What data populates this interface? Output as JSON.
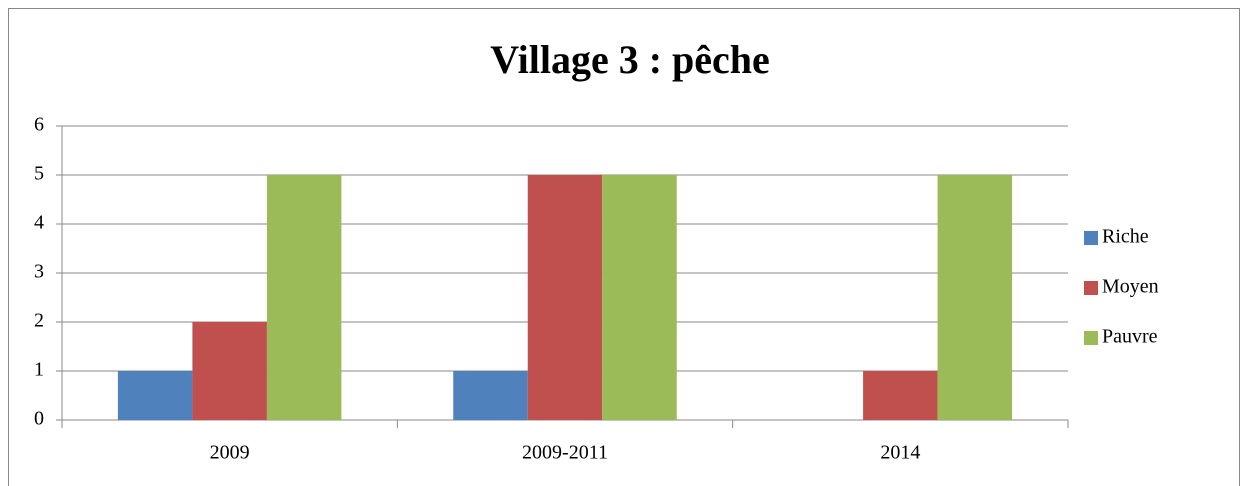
{
  "chart_data": {
    "type": "bar",
    "title": "Village 3 : pêche",
    "categories": [
      "2009",
      "2009-2011",
      "2014"
    ],
    "series": [
      {
        "name": "Riche",
        "color": "#4f81bd",
        "values": [
          1,
          1,
          0
        ]
      },
      {
        "name": "Moyen",
        "color": "#c0504d",
        "values": [
          2,
          5,
          1
        ]
      },
      {
        "name": "Pauvre",
        "color": "#9bbb59",
        "values": [
          5,
          5,
          5
        ]
      }
    ],
    "ylim": [
      0,
      6
    ],
    "yticks": [
      0,
      1,
      2,
      3,
      4,
      5,
      6
    ],
    "grid": true,
    "legend": "right"
  }
}
